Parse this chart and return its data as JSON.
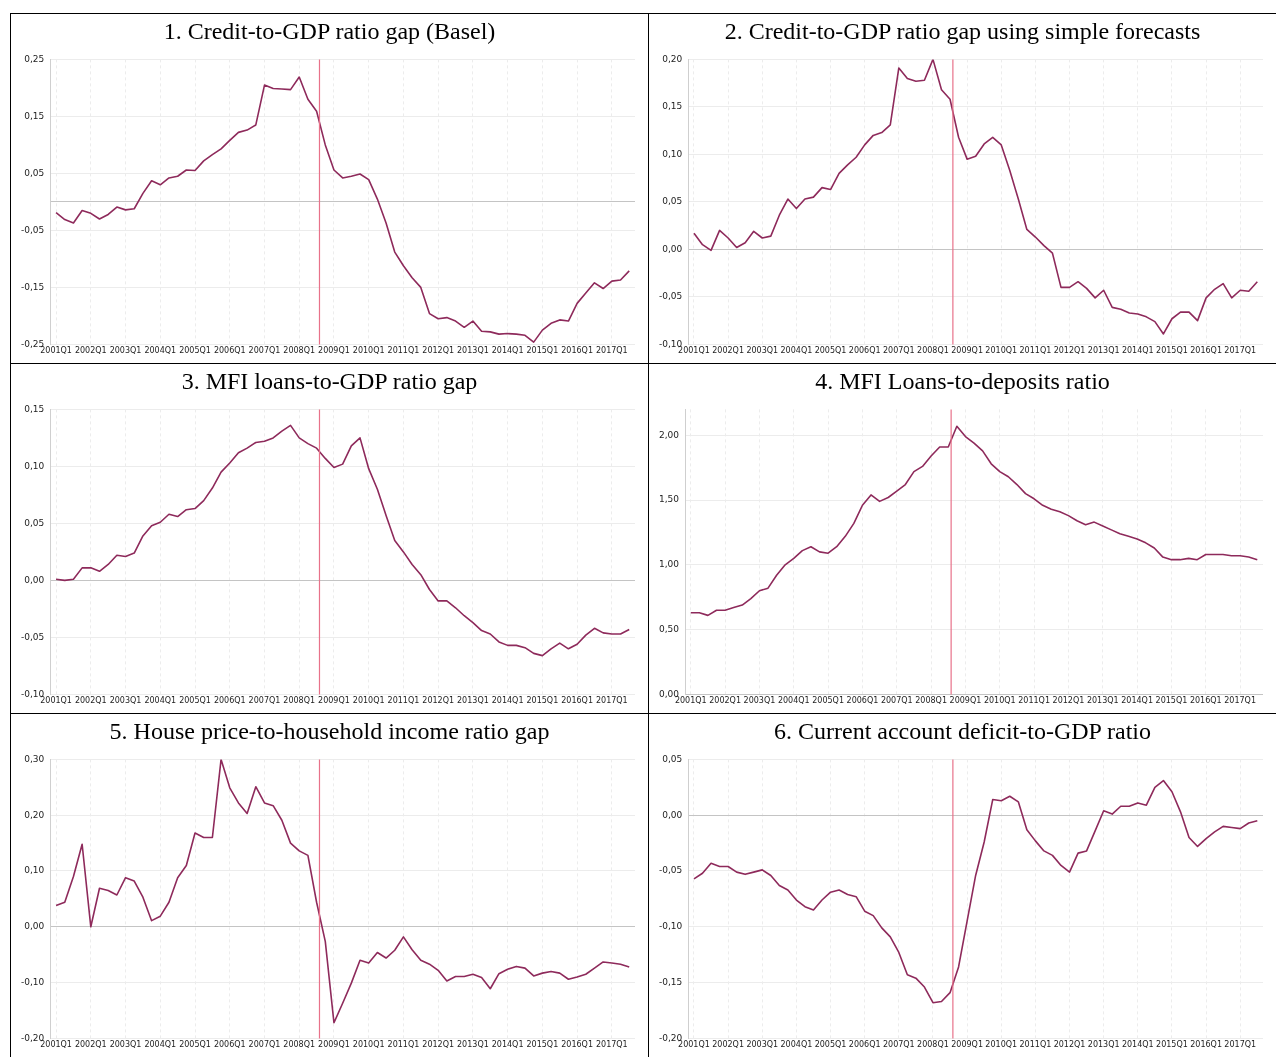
{
  "chart_data": [
    {
      "type": "line",
      "title": "1. Credit-to-GDP ratio gap (Basel)",
      "grid": true,
      "marker": "none",
      "x": [
        "2001-01",
        "2001-04",
        "2001-07",
        "2001-10",
        "2002-01",
        "2002-04",
        "2002-07",
        "2002-10",
        "2003-01",
        "2003-04",
        "2003-07",
        "2003-10",
        "2004-01",
        "2004-04",
        "2004-07",
        "2004-10",
        "2005-01",
        "2005-04",
        "2005-07",
        "2005-10",
        "2006-01",
        "2006-04",
        "2006-07",
        "2006-10",
        "2007-01",
        "2007-04",
        "2007-07",
        "2007-10",
        "2008-01",
        "2008-04",
        "2008-07",
        "2008-10",
        "2009-01",
        "2009-04",
        "2009-07",
        "2009-10",
        "2010-01",
        "2010-04",
        "2010-07",
        "2010-10",
        "2011-01",
        "2011-04",
        "2011-07",
        "2011-10",
        "2012-01",
        "2012-04",
        "2012-07",
        "2012-10",
        "2013-01",
        "2013-04",
        "2013-07",
        "2013-10",
        "2014-01",
        "2014-04",
        "2014-07",
        "2014-10",
        "2015-01",
        "2015-04",
        "2015-07",
        "2015-10",
        "2016-01",
        "2016-04",
        "2016-07",
        "2016-10",
        "2017-01",
        "2017-04",
        "2017-07"
      ],
      "series": [
        {
          "color": "#8e2a5b",
          "values": [
            -0.019,
            -0.031,
            -0.037,
            -0.015,
            -0.02,
            -0.03,
            -0.022,
            -0.009,
            -0.014,
            -0.012,
            0.015,
            0.037,
            0.03,
            0.042,
            0.045,
            0.056,
            0.055,
            0.072,
            0.083,
            0.093,
            0.108,
            0.122,
            0.126,
            0.135,
            0.205,
            0.199,
            0.198,
            0.197,
            0.219,
            0.18,
            0.159,
            0.1,
            0.056,
            0.042,
            0.045,
            0.049,
            0.039,
            0.005,
            -0.037,
            -0.088,
            -0.112,
            -0.133,
            -0.15,
            -0.196,
            -0.205,
            -0.203,
            -0.209,
            -0.22,
            -0.209,
            -0.227,
            -0.228,
            -0.232,
            -0.231,
            -0.232,
            -0.234,
            -0.246,
            -0.225,
            -0.213,
            -0.207,
            -0.209,
            -0.178,
            -0.16,
            -0.142,
            -0.152,
            -0.139,
            -0.137,
            -0.121
          ]
        }
      ],
      "xlim": [
        "2000-11",
        "2017-09"
      ],
      "xticks": [
        {
          "value": "2001-01",
          "label": "2001Q1"
        },
        {
          "value": "2002-01",
          "label": "2002Q1"
        },
        {
          "value": "2003-01",
          "label": "2003Q1"
        },
        {
          "value": "2004-01",
          "label": "2004Q1"
        },
        {
          "value": "2005-01",
          "label": "2005Q1"
        },
        {
          "value": "2006-01",
          "label": "2006Q1"
        },
        {
          "value": "2007-01",
          "label": "2007Q1"
        },
        {
          "value": "2008-01",
          "label": "2008Q1"
        },
        {
          "value": "2009-01",
          "label": "2009Q1"
        },
        {
          "value": "2010-01",
          "label": "2010Q1"
        },
        {
          "value": "2011-01",
          "label": "2011Q1"
        },
        {
          "value": "2012-01",
          "label": "2012Q1"
        },
        {
          "value": "2013-01",
          "label": "2013Q1"
        },
        {
          "value": "2014-01",
          "label": "2014Q1"
        },
        {
          "value": "2015-01",
          "label": "2015Q1"
        },
        {
          "value": "2016-01",
          "label": "2016Q1"
        },
        {
          "value": "2017-01",
          "label": "2017Q1"
        }
      ],
      "ylim": [
        -0.25,
        0.25
      ],
      "yticks": [
        {
          "value": -0.25,
          "label": "-0,25"
        },
        {
          "value": -0.15,
          "label": "-0,15"
        },
        {
          "value": -0.05,
          "label": "-0,05"
        },
        {
          "value": 0,
          "label": null
        },
        {
          "value": 0.05,
          "label": "0,05"
        },
        {
          "value": 0.15,
          "label": "0,15"
        },
        {
          "value": 0.25,
          "label": "0,25"
        }
      ],
      "ref_lines": [
        {
          "axis": "x",
          "value": "2008-08",
          "color": "#e8728a"
        }
      ]
    },
    {
      "type": "line",
      "title": "2. Credit-to-GDP ratio gap using simple forecasts",
      "grid": true,
      "marker": "none",
      "x": [
        "2001-01",
        "2001-04",
        "2001-07",
        "2001-10",
        "2002-01",
        "2002-04",
        "2002-07",
        "2002-10",
        "2003-01",
        "2003-04",
        "2003-07",
        "2003-10",
        "2004-01",
        "2004-04",
        "2004-07",
        "2004-10",
        "2005-01",
        "2005-04",
        "2005-07",
        "2005-10",
        "2006-01",
        "2006-04",
        "2006-07",
        "2006-10",
        "2007-01",
        "2007-04",
        "2007-07",
        "2007-10",
        "2008-01",
        "2008-04",
        "2008-07",
        "2008-10",
        "2009-01",
        "2009-04",
        "2009-07",
        "2009-10",
        "2010-01",
        "2010-04",
        "2010-07",
        "2010-10",
        "2011-01",
        "2011-04",
        "2011-07",
        "2011-10",
        "2012-01",
        "2012-04",
        "2012-07",
        "2012-10",
        "2013-01",
        "2013-04",
        "2013-07",
        "2013-10",
        "2014-01",
        "2014-04",
        "2014-07",
        "2014-10",
        "2015-01",
        "2015-04",
        "2015-07",
        "2015-10",
        "2016-01",
        "2016-04",
        "2016-07",
        "2016-10",
        "2017-01",
        "2017-04",
        "2017-07"
      ],
      "series": [
        {
          "color": "#8e2a5b",
          "values": [
            0.017,
            0.005,
            -0.001,
            0.02,
            0.012,
            0.002,
            0.007,
            0.019,
            0.012,
            0.014,
            0.036,
            0.053,
            0.043,
            0.053,
            0.055,
            0.065,
            0.063,
            0.08,
            0.089,
            0.097,
            0.11,
            0.12,
            0.123,
            0.131,
            0.191,
            0.18,
            0.177,
            0.178,
            0.2,
            0.168,
            0.158,
            0.118,
            0.095,
            0.098,
            0.111,
            0.118,
            0.11,
            0.083,
            0.053,
            0.021,
            0.013,
            0.004,
            -0.004,
            -0.04,
            -0.04,
            -0.034,
            -0.041,
            -0.051,
            -0.043,
            -0.061,
            -0.063,
            -0.067,
            -0.068,
            -0.071,
            -0.076,
            -0.089,
            -0.073,
            -0.066,
            -0.066,
            -0.075,
            -0.051,
            -0.042,
            -0.036,
            -0.051,
            -0.043,
            -0.044,
            -0.034
          ]
        }
      ],
      "xlim": [
        "2000-11",
        "2017-09"
      ],
      "xticks": [
        {
          "value": "2001-01",
          "label": "2001Q1"
        },
        {
          "value": "2002-01",
          "label": "2002Q1"
        },
        {
          "value": "2003-01",
          "label": "2003Q1"
        },
        {
          "value": "2004-01",
          "label": "2004Q1"
        },
        {
          "value": "2005-01",
          "label": "2005Q1"
        },
        {
          "value": "2006-01",
          "label": "2006Q1"
        },
        {
          "value": "2007-01",
          "label": "2007Q1"
        },
        {
          "value": "2008-01",
          "label": "2008Q1"
        },
        {
          "value": "2009-01",
          "label": "2009Q1"
        },
        {
          "value": "2010-01",
          "label": "2010Q1"
        },
        {
          "value": "2011-01",
          "label": "2011Q1"
        },
        {
          "value": "2012-01",
          "label": "2012Q1"
        },
        {
          "value": "2013-01",
          "label": "2013Q1"
        },
        {
          "value": "2014-01",
          "label": "2014Q1"
        },
        {
          "value": "2015-01",
          "label": "2015Q1"
        },
        {
          "value": "2016-01",
          "label": "2016Q1"
        },
        {
          "value": "2017-01",
          "label": "2017Q1"
        }
      ],
      "ylim": [
        -0.1,
        0.2
      ],
      "yticks": [
        {
          "value": -0.1,
          "label": "-0,10"
        },
        {
          "value": -0.05,
          "label": "-0,05"
        },
        {
          "value": 0,
          "label": "0,00"
        },
        {
          "value": 0.05,
          "label": "0,05"
        },
        {
          "value": 0.1,
          "label": "0,10"
        },
        {
          "value": 0.15,
          "label": "0,15"
        },
        {
          "value": 0.2,
          "label": "0,20"
        }
      ],
      "ref_lines": [
        {
          "axis": "x",
          "value": "2008-08",
          "color": "#e8728a"
        }
      ]
    },
    {
      "type": "line",
      "title": "3. MFI loans-to-GDP ratio gap",
      "grid": true,
      "marker": "none",
      "x": [
        "2001-01",
        "2001-04",
        "2001-07",
        "2001-10",
        "2002-01",
        "2002-04",
        "2002-07",
        "2002-10",
        "2003-01",
        "2003-04",
        "2003-07",
        "2003-10",
        "2004-01",
        "2004-04",
        "2004-07",
        "2004-10",
        "2005-01",
        "2005-04",
        "2005-07",
        "2005-10",
        "2006-01",
        "2006-04",
        "2006-07",
        "2006-10",
        "2007-01",
        "2007-04",
        "2007-07",
        "2007-10",
        "2008-01",
        "2008-04",
        "2008-07",
        "2008-10",
        "2009-01",
        "2009-04",
        "2009-07",
        "2009-10",
        "2010-01",
        "2010-04",
        "2010-07",
        "2010-10",
        "2011-01",
        "2011-04",
        "2011-07",
        "2011-10",
        "2012-01",
        "2012-04",
        "2012-07",
        "2012-10",
        "2013-01",
        "2013-04",
        "2013-07",
        "2013-10",
        "2014-01",
        "2014-04",
        "2014-07",
        "2014-10",
        "2015-01",
        "2015-04",
        "2015-07",
        "2015-10",
        "2016-01",
        "2016-04",
        "2016-07",
        "2016-10",
        "2017-01",
        "2017-04",
        "2017-07"
      ],
      "series": [
        {
          "color": "#8e2a5b",
          "values": [
            0.001,
            0.0,
            0.001,
            0.011,
            0.011,
            0.008,
            0.014,
            0.022,
            0.021,
            0.024,
            0.039,
            0.048,
            0.051,
            0.058,
            0.056,
            0.062,
            0.063,
            0.07,
            0.081,
            0.095,
            0.103,
            0.112,
            0.116,
            0.121,
            0.122,
            0.125,
            0.131,
            0.136,
            0.125,
            0.12,
            0.116,
            0.107,
            0.099,
            0.102,
            0.118,
            0.125,
            0.098,
            0.08,
            0.057,
            0.035,
            0.025,
            0.014,
            0.005,
            -0.008,
            -0.018,
            -0.018,
            -0.024,
            -0.031,
            -0.037,
            -0.044,
            -0.047,
            -0.054,
            -0.057,
            -0.057,
            -0.059,
            -0.064,
            -0.066,
            -0.06,
            -0.055,
            -0.06,
            -0.056,
            -0.048,
            -0.042,
            -0.046,
            -0.047,
            -0.047,
            -0.043
          ]
        }
      ],
      "xlim": [
        "2000-11",
        "2017-09"
      ],
      "xticks": [
        {
          "value": "2001-01",
          "label": "2001Q1"
        },
        {
          "value": "2002-01",
          "label": "2002Q1"
        },
        {
          "value": "2003-01",
          "label": "2003Q1"
        },
        {
          "value": "2004-01",
          "label": "2004Q1"
        },
        {
          "value": "2005-01",
          "label": "2005Q1"
        },
        {
          "value": "2006-01",
          "label": "2006Q1"
        },
        {
          "value": "2007-01",
          "label": "2007Q1"
        },
        {
          "value": "2008-01",
          "label": "2008Q1"
        },
        {
          "value": "2009-01",
          "label": "2009Q1"
        },
        {
          "value": "2010-01",
          "label": "2010Q1"
        },
        {
          "value": "2011-01",
          "label": "2011Q1"
        },
        {
          "value": "2012-01",
          "label": "2012Q1"
        },
        {
          "value": "2013-01",
          "label": "2013Q1"
        },
        {
          "value": "2014-01",
          "label": "2014Q1"
        },
        {
          "value": "2015-01",
          "label": "2015Q1"
        },
        {
          "value": "2016-01",
          "label": "2016Q1"
        },
        {
          "value": "2017-01",
          "label": "2017Q1"
        }
      ],
      "ylim": [
        -0.1,
        0.15
      ],
      "yticks": [
        {
          "value": -0.1,
          "label": "-0,10"
        },
        {
          "value": -0.05,
          "label": "-0,05"
        },
        {
          "value": 0,
          "label": "0,00"
        },
        {
          "value": 0.05,
          "label": "0,05"
        },
        {
          "value": 0.1,
          "label": "0,10"
        },
        {
          "value": 0.15,
          "label": "0,15"
        }
      ],
      "ref_lines": [
        {
          "axis": "x",
          "value": "2008-08",
          "color": "#e8728a"
        }
      ]
    },
    {
      "type": "line",
      "title": "4. MFI Loans-to-deposits ratio",
      "grid": true,
      "marker": "none",
      "x": [
        "2001-01",
        "2001-04",
        "2001-07",
        "2001-10",
        "2002-01",
        "2002-04",
        "2002-07",
        "2002-10",
        "2003-01",
        "2003-04",
        "2003-07",
        "2003-10",
        "2004-01",
        "2004-04",
        "2004-07",
        "2004-10",
        "2005-01",
        "2005-04",
        "2005-07",
        "2005-10",
        "2006-01",
        "2006-04",
        "2006-07",
        "2006-10",
        "2007-01",
        "2007-04",
        "2007-07",
        "2007-10",
        "2008-01",
        "2008-04",
        "2008-07",
        "2008-10",
        "2009-01",
        "2009-04",
        "2009-07",
        "2009-10",
        "2010-01",
        "2010-04",
        "2010-07",
        "2010-10",
        "2011-01",
        "2011-04",
        "2011-07",
        "2011-10",
        "2012-01",
        "2012-04",
        "2012-07",
        "2012-10",
        "2013-01",
        "2013-04",
        "2013-07",
        "2013-10",
        "2014-01",
        "2014-04",
        "2014-07",
        "2014-10",
        "2015-01",
        "2015-04",
        "2015-07",
        "2015-10",
        "2016-01",
        "2016-04",
        "2016-07",
        "2016-10",
        "2017-01",
        "2017-04",
        "2017-07"
      ],
      "series": [
        {
          "color": "#8e2a5b",
          "values": [
            0.63,
            0.63,
            0.61,
            0.65,
            0.65,
            0.67,
            0.69,
            0.74,
            0.8,
            0.82,
            0.92,
            1.0,
            1.05,
            1.11,
            1.14,
            1.1,
            1.09,
            1.14,
            1.22,
            1.32,
            1.46,
            1.54,
            1.49,
            1.52,
            1.57,
            1.62,
            1.72,
            1.76,
            1.84,
            1.91,
            1.91,
            2.07,
            1.99,
            1.94,
            1.88,
            1.78,
            1.72,
            1.68,
            1.62,
            1.55,
            1.51,
            1.46,
            1.43,
            1.41,
            1.38,
            1.34,
            1.31,
            1.33,
            1.3,
            1.27,
            1.24,
            1.22,
            1.2,
            1.17,
            1.13,
            1.06,
            1.04,
            1.04,
            1.05,
            1.04,
            1.08,
            1.08,
            1.08,
            1.07,
            1.07,
            1.06,
            1.04
          ]
        }
      ],
      "xlim": [
        "2000-11",
        "2017-09"
      ],
      "xticks": [
        {
          "value": "2001-01",
          "label": "2001Q1"
        },
        {
          "value": "2002-01",
          "label": "2002Q1"
        },
        {
          "value": "2003-01",
          "label": "2003Q1"
        },
        {
          "value": "2004-01",
          "label": "2004Q1"
        },
        {
          "value": "2005-01",
          "label": "2005Q1"
        },
        {
          "value": "2006-01",
          "label": "2006Q1"
        },
        {
          "value": "2007-01",
          "label": "2007Q1"
        },
        {
          "value": "2008-01",
          "label": "2008Q1"
        },
        {
          "value": "2009-01",
          "label": "2009Q1"
        },
        {
          "value": "2010-01",
          "label": "2010Q1"
        },
        {
          "value": "2011-01",
          "label": "2011Q1"
        },
        {
          "value": "2012-01",
          "label": "2012Q1"
        },
        {
          "value": "2013-01",
          "label": "2013Q1"
        },
        {
          "value": "2014-01",
          "label": "2014Q1"
        },
        {
          "value": "2015-01",
          "label": "2015Q1"
        },
        {
          "value": "2016-01",
          "label": "2016Q1"
        },
        {
          "value": "2017-01",
          "label": "2017Q1"
        }
      ],
      "ylim": [
        0,
        2.2
      ],
      "yticks": [
        {
          "value": 0,
          "label": "0,00"
        },
        {
          "value": 0.5,
          "label": "0,50"
        },
        {
          "value": 1,
          "label": "1,00"
        },
        {
          "value": 1.5,
          "label": "1,50"
        },
        {
          "value": 2,
          "label": "2,00"
        }
      ],
      "ref_lines": [
        {
          "axis": "x",
          "value": "2008-08",
          "color": "#e8728a"
        }
      ]
    },
    {
      "type": "line",
      "title": "5. House price-to-household income ratio gap",
      "grid": true,
      "marker": "none",
      "x": [
        "2001-01",
        "2001-04",
        "2001-07",
        "2001-10",
        "2002-01",
        "2002-04",
        "2002-07",
        "2002-10",
        "2003-01",
        "2003-04",
        "2003-07",
        "2003-10",
        "2004-01",
        "2004-04",
        "2004-07",
        "2004-10",
        "2005-01",
        "2005-04",
        "2005-07",
        "2005-10",
        "2006-01",
        "2006-04",
        "2006-07",
        "2006-10",
        "2007-01",
        "2007-04",
        "2007-07",
        "2007-10",
        "2008-01",
        "2008-04",
        "2008-07",
        "2008-10",
        "2009-01",
        "2009-04",
        "2009-07",
        "2009-10",
        "2010-01",
        "2010-04",
        "2010-07",
        "2010-10",
        "2011-01",
        "2011-04",
        "2011-07",
        "2011-10",
        "2012-01",
        "2012-04",
        "2012-07",
        "2012-10",
        "2013-01",
        "2013-04",
        "2013-07",
        "2013-10",
        "2014-01",
        "2014-04",
        "2014-07",
        "2014-10",
        "2015-01",
        "2015-04",
        "2015-07",
        "2015-10",
        "2016-01",
        "2016-04",
        "2016-07",
        "2016-10",
        "2017-01",
        "2017-04",
        "2017-07"
      ],
      "series": [
        {
          "color": "#8e2a5b",
          "values": [
            0.038,
            0.044,
            0.09,
            0.148,
            0.0,
            0.069,
            0.065,
            0.057,
            0.088,
            0.082,
            0.053,
            0.011,
            0.019,
            0.044,
            0.088,
            0.11,
            0.168,
            0.16,
            0.16,
            0.3,
            0.249,
            0.222,
            0.203,
            0.251,
            0.222,
            0.217,
            0.191,
            0.15,
            0.136,
            0.128,
            0.044,
            -0.026,
            -0.172,
            -0.137,
            -0.101,
            -0.06,
            -0.065,
            -0.046,
            -0.056,
            -0.042,
            -0.018,
            -0.041,
            -0.06,
            -0.067,
            -0.078,
            -0.097,
            -0.089,
            -0.089,
            -0.085,
            -0.091,
            -0.111,
            -0.084,
            -0.076,
            -0.071,
            -0.074,
            -0.088,
            -0.083,
            -0.08,
            -0.083,
            -0.094,
            -0.09,
            -0.085,
            -0.074,
            -0.063,
            -0.065,
            -0.067,
            -0.072
          ]
        }
      ],
      "xlim": [
        "2000-11",
        "2017-09"
      ],
      "xticks": [
        {
          "value": "2001-01",
          "label": "2001Q1"
        },
        {
          "value": "2002-01",
          "label": "2002Q1"
        },
        {
          "value": "2003-01",
          "label": "2003Q1"
        },
        {
          "value": "2004-01",
          "label": "2004Q1"
        },
        {
          "value": "2005-01",
          "label": "2005Q1"
        },
        {
          "value": "2006-01",
          "label": "2006Q1"
        },
        {
          "value": "2007-01",
          "label": "2007Q1"
        },
        {
          "value": "2008-01",
          "label": "2008Q1"
        },
        {
          "value": "2009-01",
          "label": "2009Q1"
        },
        {
          "value": "2010-01",
          "label": "2010Q1"
        },
        {
          "value": "2011-01",
          "label": "2011Q1"
        },
        {
          "value": "2012-01",
          "label": "2012Q1"
        },
        {
          "value": "2013-01",
          "label": "2013Q1"
        },
        {
          "value": "2014-01",
          "label": "2014Q1"
        },
        {
          "value": "2015-01",
          "label": "2015Q1"
        },
        {
          "value": "2016-01",
          "label": "2016Q1"
        },
        {
          "value": "2017-01",
          "label": "2017Q1"
        }
      ],
      "ylim": [
        -0.2,
        0.3
      ],
      "yticks": [
        {
          "value": -0.2,
          "label": "-0,20"
        },
        {
          "value": -0.1,
          "label": "-0,10"
        },
        {
          "value": 0,
          "label": "0,00"
        },
        {
          "value": 0.1,
          "label": "0,10"
        },
        {
          "value": 0.2,
          "label": "0,20"
        },
        {
          "value": 0.3,
          "label": "0,30"
        }
      ],
      "ref_lines": [
        {
          "axis": "x",
          "value": "2008-08",
          "color": "#e8728a"
        }
      ]
    },
    {
      "type": "line",
      "title": "6. Current account deficit-to-GDP ratio",
      "grid": true,
      "marker": "none",
      "x": [
        "2001-01",
        "2001-04",
        "2001-07",
        "2001-10",
        "2002-01",
        "2002-04",
        "2002-07",
        "2002-10",
        "2003-01",
        "2003-04",
        "2003-07",
        "2003-10",
        "2004-01",
        "2004-04",
        "2004-07",
        "2004-10",
        "2005-01",
        "2005-04",
        "2005-07",
        "2005-10",
        "2006-01",
        "2006-04",
        "2006-07",
        "2006-10",
        "2007-01",
        "2007-04",
        "2007-07",
        "2007-10",
        "2008-01",
        "2008-04",
        "2008-07",
        "2008-10",
        "2009-01",
        "2009-04",
        "2009-07",
        "2009-10",
        "2010-01",
        "2010-04",
        "2010-07",
        "2010-10",
        "2011-01",
        "2011-04",
        "2011-07",
        "2011-10",
        "2012-01",
        "2012-04",
        "2012-07",
        "2012-10",
        "2013-01",
        "2013-04",
        "2013-07",
        "2013-10",
        "2014-01",
        "2014-04",
        "2014-07",
        "2014-10",
        "2015-01",
        "2015-04",
        "2015-07",
        "2015-10",
        "2016-01",
        "2016-04",
        "2016-07",
        "2016-10",
        "2017-01",
        "2017-04",
        "2017-07"
      ],
      "series": [
        {
          "color": "#8e2a5b",
          "values": [
            -0.057,
            -0.052,
            -0.043,
            -0.046,
            -0.046,
            -0.051,
            -0.053,
            -0.051,
            -0.049,
            -0.054,
            -0.063,
            -0.067,
            -0.076,
            -0.082,
            -0.085,
            -0.076,
            -0.069,
            -0.067,
            -0.071,
            -0.073,
            -0.086,
            -0.09,
            -0.101,
            -0.109,
            -0.123,
            -0.143,
            -0.146,
            -0.154,
            -0.168,
            -0.167,
            -0.159,
            -0.136,
            -0.095,
            -0.054,
            -0.024,
            0.014,
            0.013,
            0.017,
            0.012,
            -0.013,
            -0.023,
            -0.032,
            -0.036,
            -0.045,
            -0.051,
            -0.034,
            -0.032,
            -0.014,
            0.004,
            0.001,
            0.008,
            0.008,
            0.011,
            0.009,
            0.025,
            0.031,
            0.021,
            0.003,
            -0.02,
            -0.028,
            -0.021,
            -0.015,
            -0.01,
            -0.011,
            -0.012,
            -0.007,
            -0.005
          ]
        }
      ],
      "xlim": [
        "2000-11",
        "2017-09"
      ],
      "xticks": [
        {
          "value": "2001-01",
          "label": "2001Q1"
        },
        {
          "value": "2002-01",
          "label": "2002Q1"
        },
        {
          "value": "2003-01",
          "label": "2003Q1"
        },
        {
          "value": "2004-01",
          "label": "2004Q1"
        },
        {
          "value": "2005-01",
          "label": "2005Q1"
        },
        {
          "value": "2006-01",
          "label": "2006Q1"
        },
        {
          "value": "2007-01",
          "label": "2007Q1"
        },
        {
          "value": "2008-01",
          "label": "2008Q1"
        },
        {
          "value": "2009-01",
          "label": "2009Q1"
        },
        {
          "value": "2010-01",
          "label": "2010Q1"
        },
        {
          "value": "2011-01",
          "label": "2011Q1"
        },
        {
          "value": "2012-01",
          "label": "2012Q1"
        },
        {
          "value": "2013-01",
          "label": "2013Q1"
        },
        {
          "value": "2014-01",
          "label": "2014Q1"
        },
        {
          "value": "2015-01",
          "label": "2015Q1"
        },
        {
          "value": "2016-01",
          "label": "2016Q1"
        },
        {
          "value": "2017-01",
          "label": "2017Q1"
        }
      ],
      "ylim": [
        -0.2,
        0.05
      ],
      "yticks": [
        {
          "value": -0.2,
          "label": "-0,20"
        },
        {
          "value": -0.15,
          "label": "-0,15"
        },
        {
          "value": -0.1,
          "label": "-0,10"
        },
        {
          "value": -0.05,
          "label": "-0,05"
        },
        {
          "value": 0,
          "label": "0,00"
        },
        {
          "value": 0.05,
          "label": "0,05"
        }
      ],
      "ref_lines": [
        {
          "axis": "x",
          "value": "2008-08",
          "color": "#e8728a"
        }
      ]
    }
  ]
}
